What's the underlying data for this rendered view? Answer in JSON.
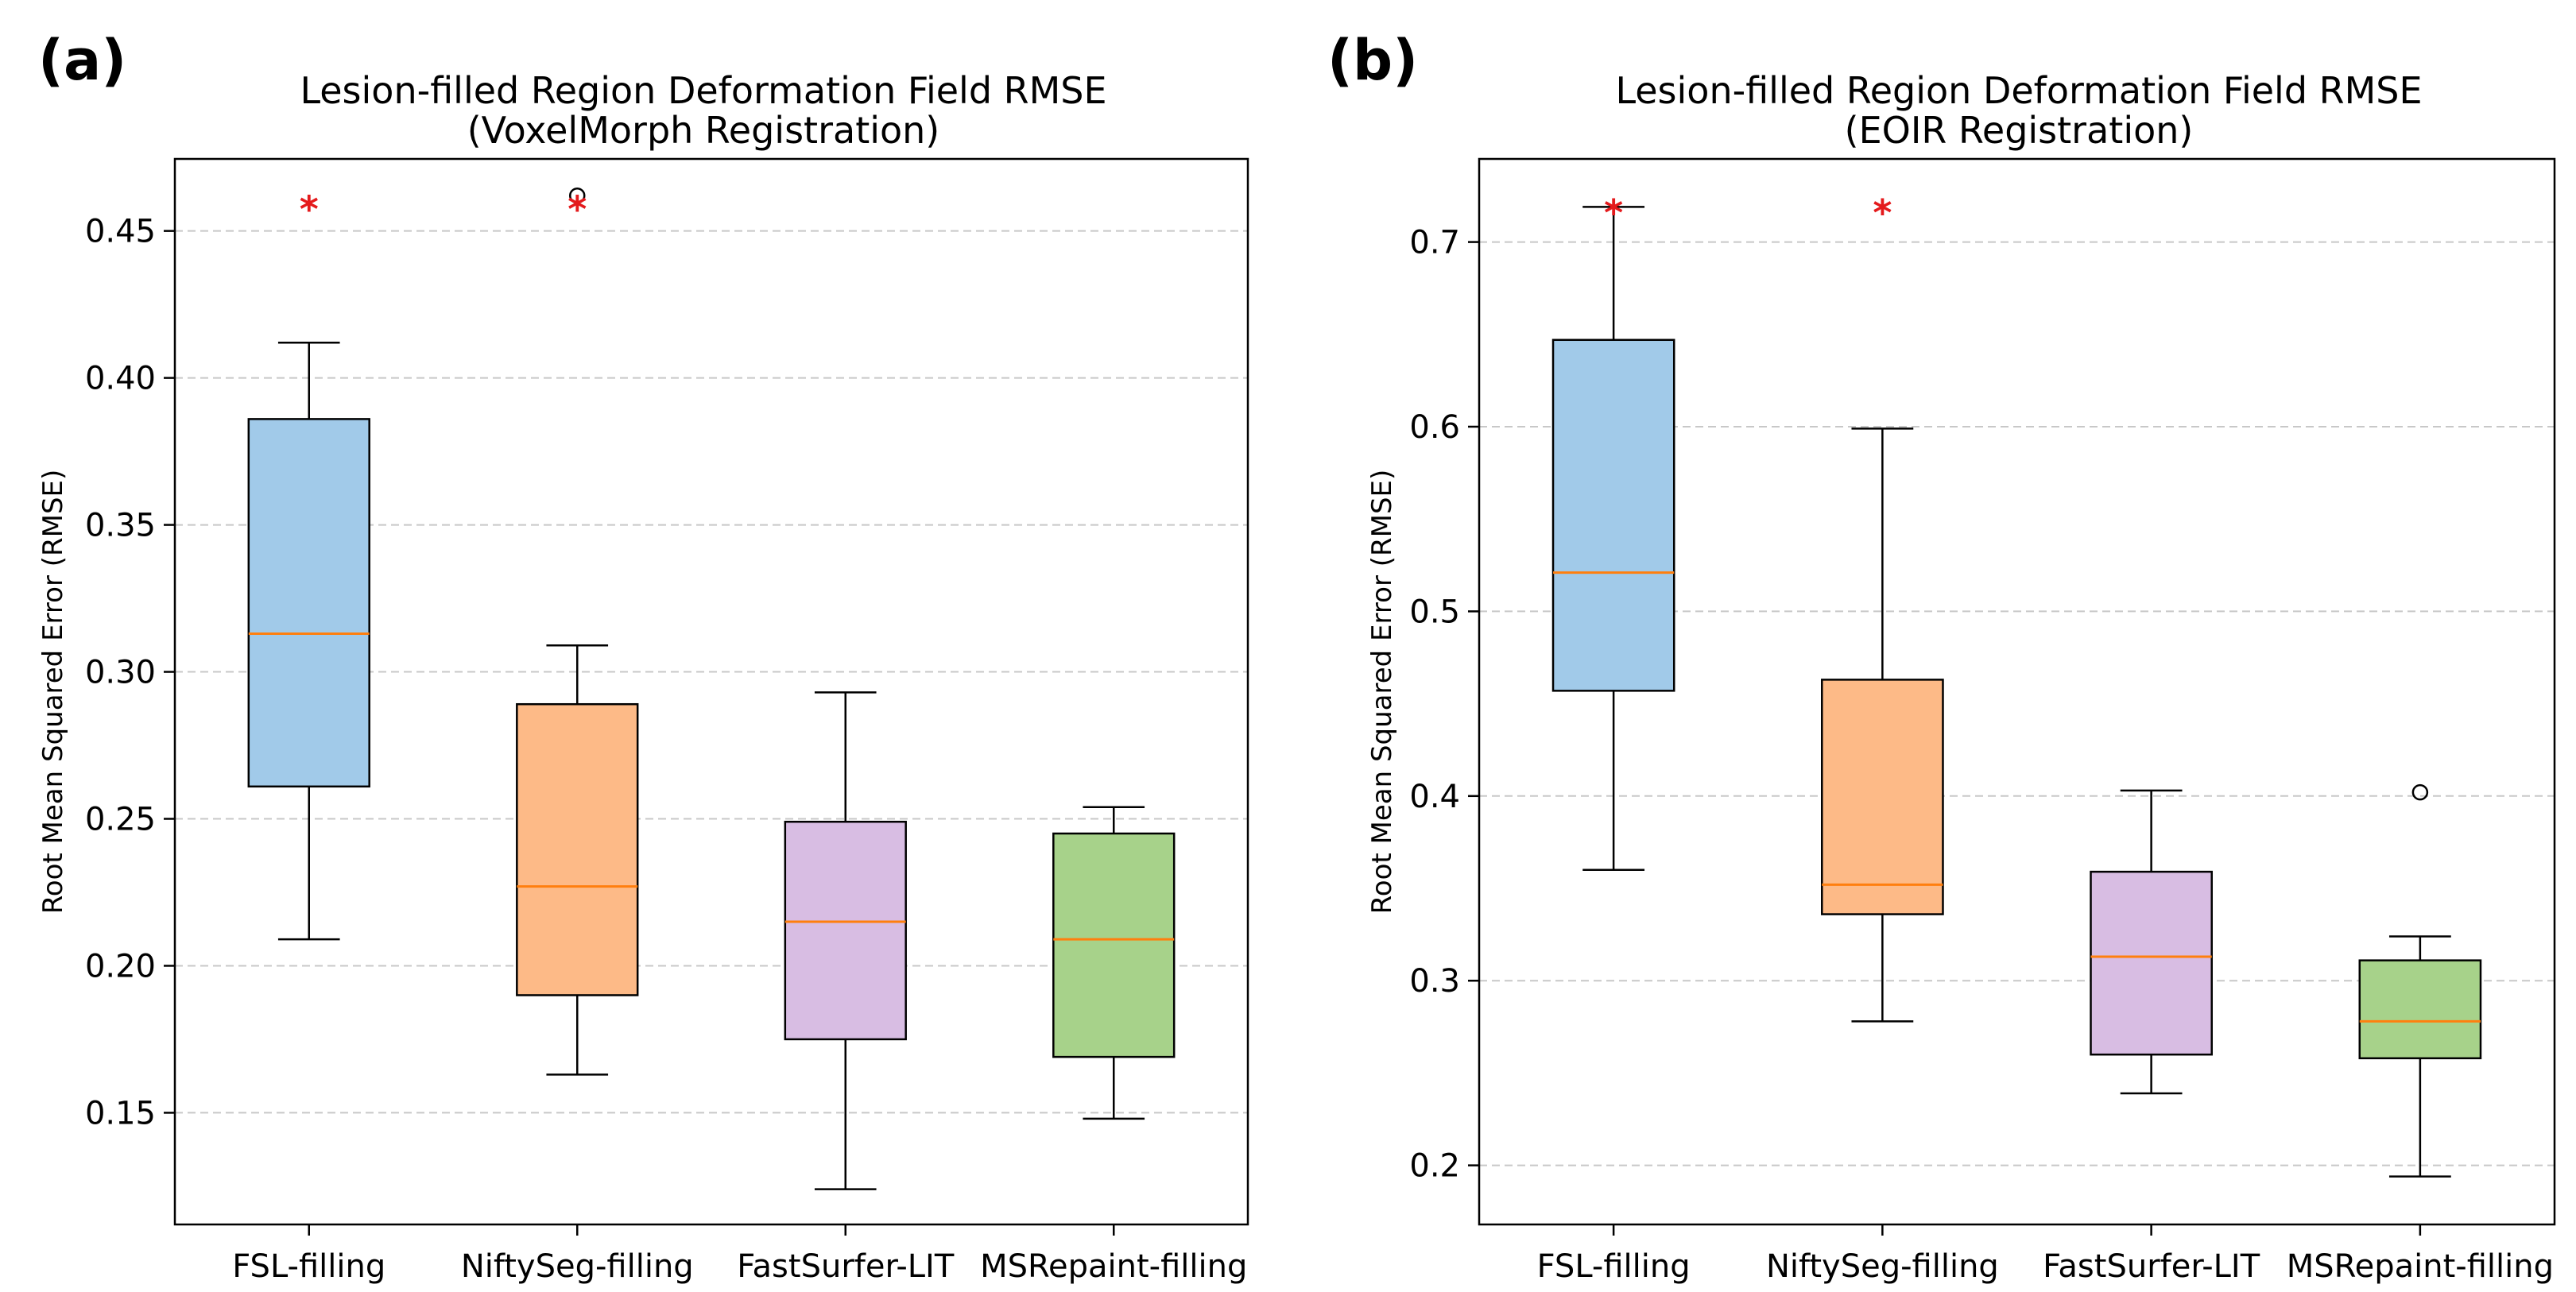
{
  "chart_data": [
    {
      "type": "box",
      "panel_label": "(a)",
      "title": "Lesion-filled Region Deformation Field RMSE",
      "subtitle": "(VoxelMorph Registration)",
      "xlabel": "",
      "ylabel": "Root Mean Squared Error (RMSE)",
      "ylim": [
        0.112,
        0.4745
      ],
      "yticks": [
        "0.15",
        "0.20",
        "0.25",
        "0.30",
        "0.35",
        "0.40",
        "0.45"
      ],
      "grid": "y-dashed",
      "categories": [
        "FSL-filling",
        "NiftySeg-filling",
        "FastSurfer-LIT",
        "MSRepaint-filling"
      ],
      "boxes": [
        {
          "min": 0.209,
          "q1": 0.261,
          "median": 0.313,
          "q3": 0.386,
          "max": 0.412,
          "outliers": [],
          "color": "#a1cae9"
        },
        {
          "min": 0.163,
          "q1": 0.19,
          "median": 0.227,
          "q3": 0.289,
          "max": 0.309,
          "outliers": [
            0.462
          ],
          "color": "#fdba87"
        },
        {
          "min": 0.124,
          "q1": 0.175,
          "median": 0.215,
          "q3": 0.249,
          "max": 0.293,
          "outliers": [],
          "color": "#d8bde3"
        },
        {
          "min": 0.148,
          "q1": 0.169,
          "median": 0.209,
          "q3": 0.245,
          "max": 0.254,
          "outliers": [],
          "color": "#a7d28a"
        }
      ],
      "markers": [
        {
          "category": 0,
          "value": 0.46,
          "symbol": "*",
          "color": "#e41a1c"
        },
        {
          "category": 1,
          "value": 0.46,
          "symbol": "*",
          "color": "#e41a1c"
        }
      ]
    },
    {
      "type": "box",
      "panel_label": "(b)",
      "title": "Lesion-filled Region Deformation Field RMSE",
      "subtitle": "(EOIR Registration)",
      "xlabel": "",
      "ylabel": "Root Mean Squared Error (RMSE)",
      "ylim": [
        0.168,
        0.745
      ],
      "yticks": [
        "0.2",
        "0.3",
        "0.4",
        "0.5",
        "0.6",
        "0.7"
      ],
      "grid": "y-dashed",
      "categories": [
        "FSL-filling",
        "NiftySeg-filling",
        "FastSurfer-LIT",
        "MSRepaint-filling"
      ],
      "boxes": [
        {
          "min": 0.36,
          "q1": 0.457,
          "median": 0.521,
          "q3": 0.647,
          "max": 0.719,
          "outliers": [],
          "color": "#a1cae9"
        },
        {
          "min": 0.278,
          "q1": 0.336,
          "median": 0.352,
          "q3": 0.463,
          "max": 0.599,
          "outliers": [],
          "color": "#fdba87"
        },
        {
          "min": 0.239,
          "q1": 0.26,
          "median": 0.313,
          "q3": 0.359,
          "max": 0.403,
          "outliers": [],
          "color": "#d8bde3"
        },
        {
          "min": 0.194,
          "q1": 0.258,
          "median": 0.278,
          "q3": 0.311,
          "max": 0.324,
          "outliers": [
            0.402
          ],
          "color": "#a7d28a"
        }
      ],
      "markers": [
        {
          "category": 0,
          "value": 0.72,
          "symbol": "*",
          "color": "#e41a1c"
        },
        {
          "category": 1,
          "value": 0.72,
          "symbol": "*",
          "color": "#e41a1c"
        }
      ]
    }
  ],
  "colors": {
    "median": "#ff7f0e",
    "axis": "#000000",
    "grid": "#c8c8c8",
    "marker": "#e41a1c"
  }
}
